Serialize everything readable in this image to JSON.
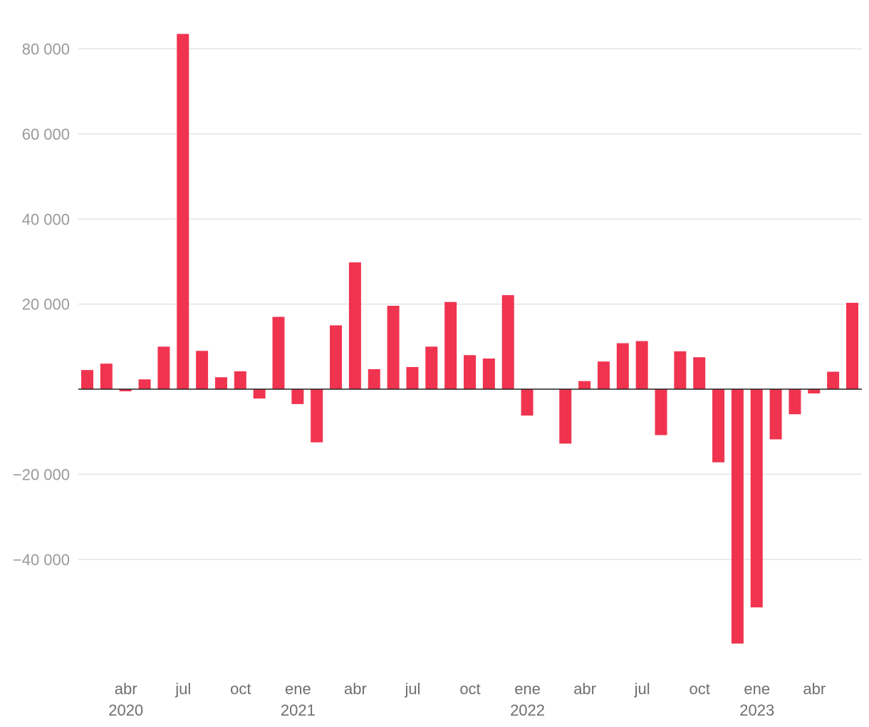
{
  "chart_data": {
    "type": "bar",
    "title": "",
    "xlabel": "",
    "ylabel": "",
    "ylim": [
      -60000,
      85000
    ],
    "y_ticks": [
      80000,
      60000,
      40000,
      20000,
      -20000,
      -40000
    ],
    "y_tick_labels": [
      "80 000",
      "60 000",
      "40 000",
      "20 000",
      "−20 000",
      "−40 000"
    ],
    "grid": true,
    "bar_color": "#f0344f",
    "zero_line_color": "#222222",
    "x_month_ticks": [
      {
        "label": "abr",
        "index": 2
      },
      {
        "label": "jul",
        "index": 5
      },
      {
        "label": "oct",
        "index": 8
      },
      {
        "label": "ene",
        "index": 11
      },
      {
        "label": "abr",
        "index": 14
      },
      {
        "label": "jul",
        "index": 17
      },
      {
        "label": "oct",
        "index": 20
      },
      {
        "label": "ene",
        "index": 23
      },
      {
        "label": "abr",
        "index": 26
      },
      {
        "label": "jul",
        "index": 29
      },
      {
        "label": "oct",
        "index": 32
      },
      {
        "label": "ene",
        "index": 35
      },
      {
        "label": "abr",
        "index": 38
      }
    ],
    "x_year_ticks": [
      {
        "label": "2020",
        "index": 2
      },
      {
        "label": "2021",
        "index": 11
      },
      {
        "label": "2022",
        "index": 23
      },
      {
        "label": "2023",
        "index": 35
      }
    ],
    "categories": [
      "2020-02",
      "2020-03",
      "2020-04",
      "2020-05",
      "2020-06",
      "2020-07",
      "2020-08",
      "2020-09",
      "2020-10",
      "2020-11",
      "2020-12",
      "2021-01",
      "2021-02",
      "2021-03",
      "2021-04",
      "2021-05",
      "2021-06",
      "2021-07",
      "2021-08",
      "2021-09",
      "2021-10",
      "2021-11",
      "2021-12",
      "2022-01",
      "2022-02",
      "2022-03",
      "2022-04",
      "2022-05",
      "2022-06",
      "2022-07",
      "2022-08",
      "2022-09",
      "2022-10",
      "2022-11",
      "2022-12",
      "2023-01",
      "2023-02",
      "2023-03",
      "2023-04",
      "2023-05",
      "2023-06"
    ],
    "values": [
      4500,
      6000,
      -500,
      2300,
      10000,
      83500,
      9000,
      2800,
      4200,
      -2200,
      17000,
      -3500,
      -12500,
      15000,
      29800,
      4700,
      19600,
      5200,
      10000,
      20500,
      8000,
      7200,
      22100,
      -6200,
      null,
      -12800,
      1900,
      6500,
      10800,
      11300,
      -10800,
      8900,
      7500,
      -17200,
      -59800,
      -51300,
      -11800,
      -5900,
      -1000,
      4100,
      20300
    ]
  }
}
